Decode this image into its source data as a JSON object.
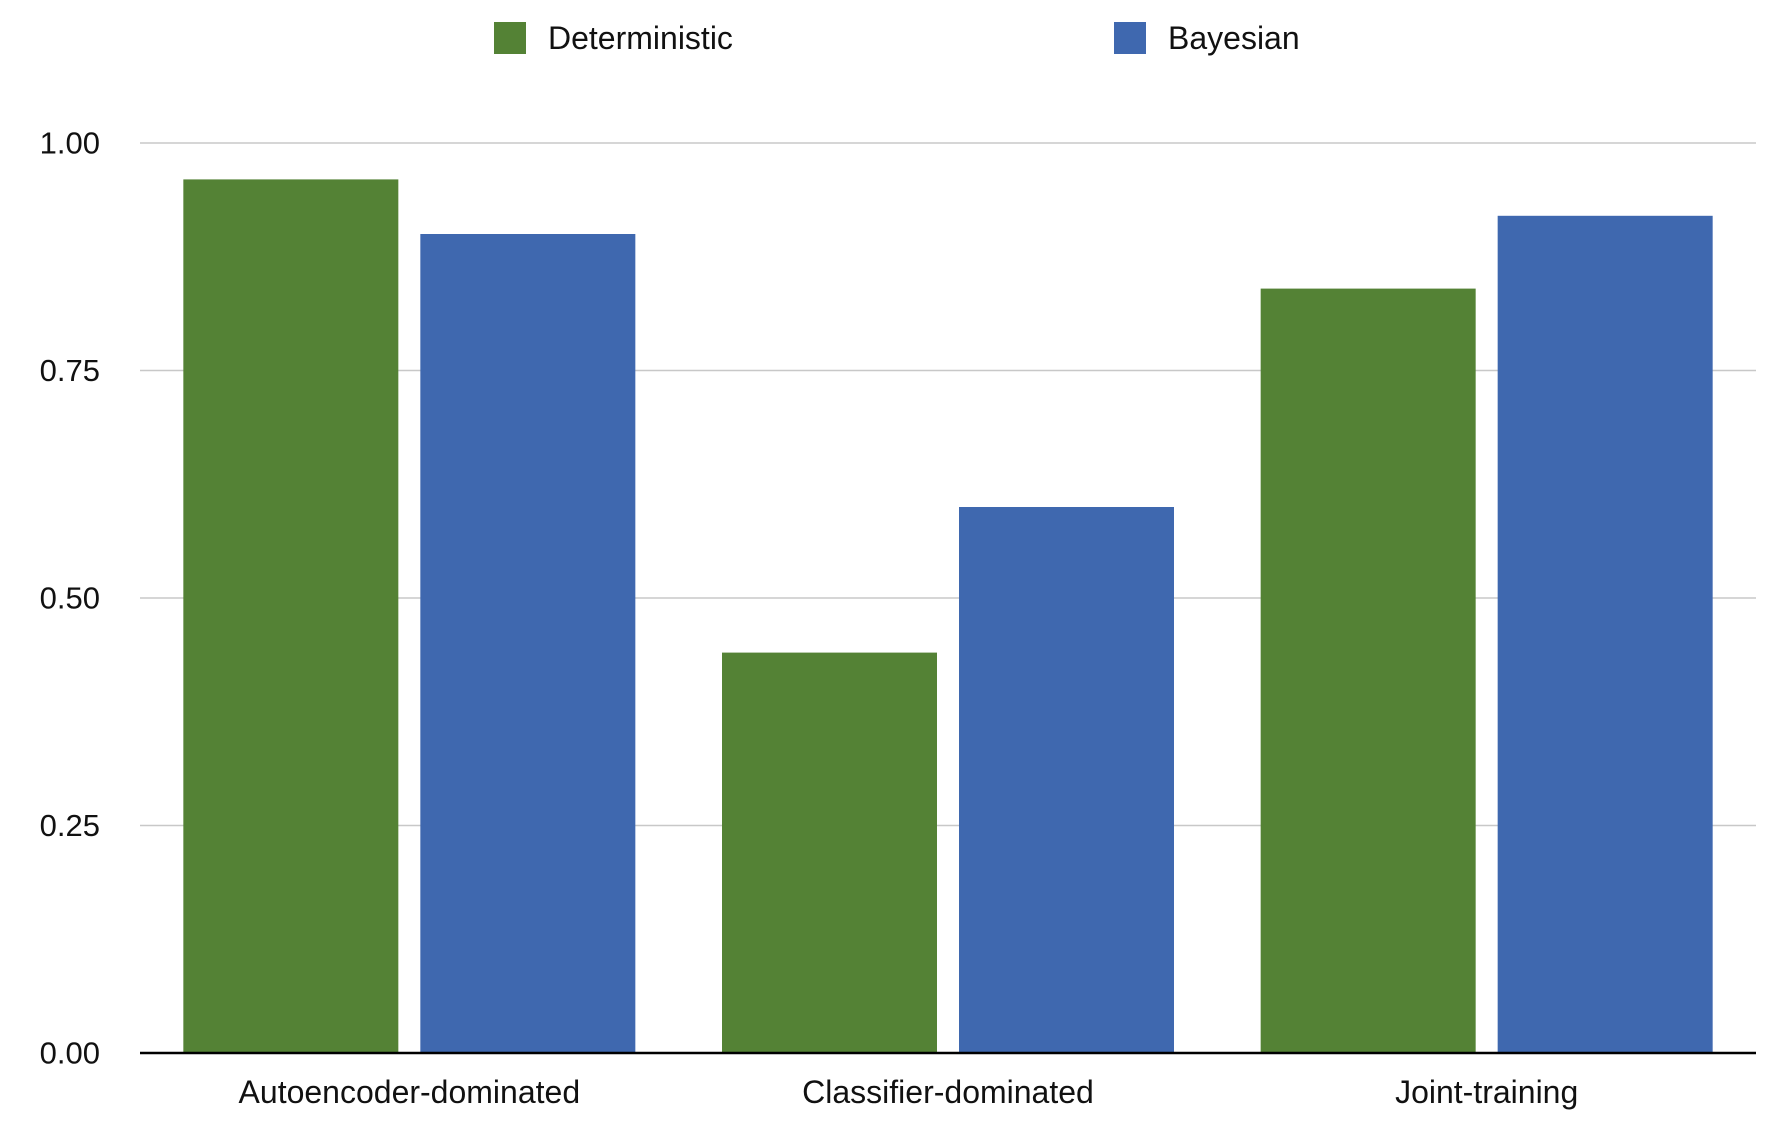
{
  "chart_data": {
    "type": "bar",
    "categories": [
      "Autoencoder-dominated",
      "Classifier-dominated",
      "Joint-training"
    ],
    "series": [
      {
        "name": "Deterministic",
        "color": "#548235",
        "values": [
          0.96,
          0.44,
          0.84
        ]
      },
      {
        "name": "Bayesian",
        "color": "#3F68AF",
        "values": [
          0.9,
          0.6,
          0.92
        ]
      }
    ],
    "yticks": [
      "0.00",
      "0.25",
      "0.50",
      "0.75",
      "1.00"
    ],
    "ylim": [
      0,
      1
    ],
    "grid": true,
    "legend_position": "top"
  }
}
